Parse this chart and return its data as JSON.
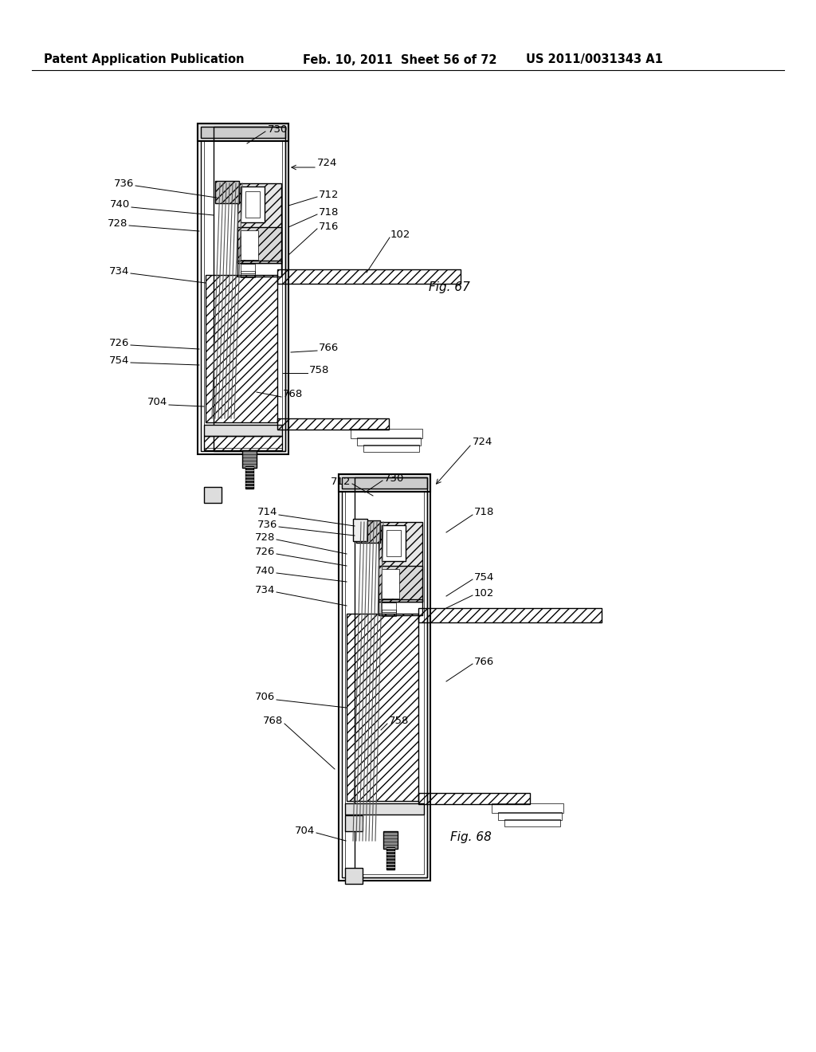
{
  "header_left": "Patent Application Publication",
  "header_mid": "Feb. 10, 2011  Sheet 56 of 72",
  "header_right": "US 2011/0031343 A1",
  "fig67_label": "Fig. 67",
  "fig68_label": "Fig. 68",
  "background_color": "#ffffff",
  "line_color": "#000000",
  "header_fontsize": 10.5,
  "label_fontsize": 9.5,
  "fig_label_fontsize": 11
}
